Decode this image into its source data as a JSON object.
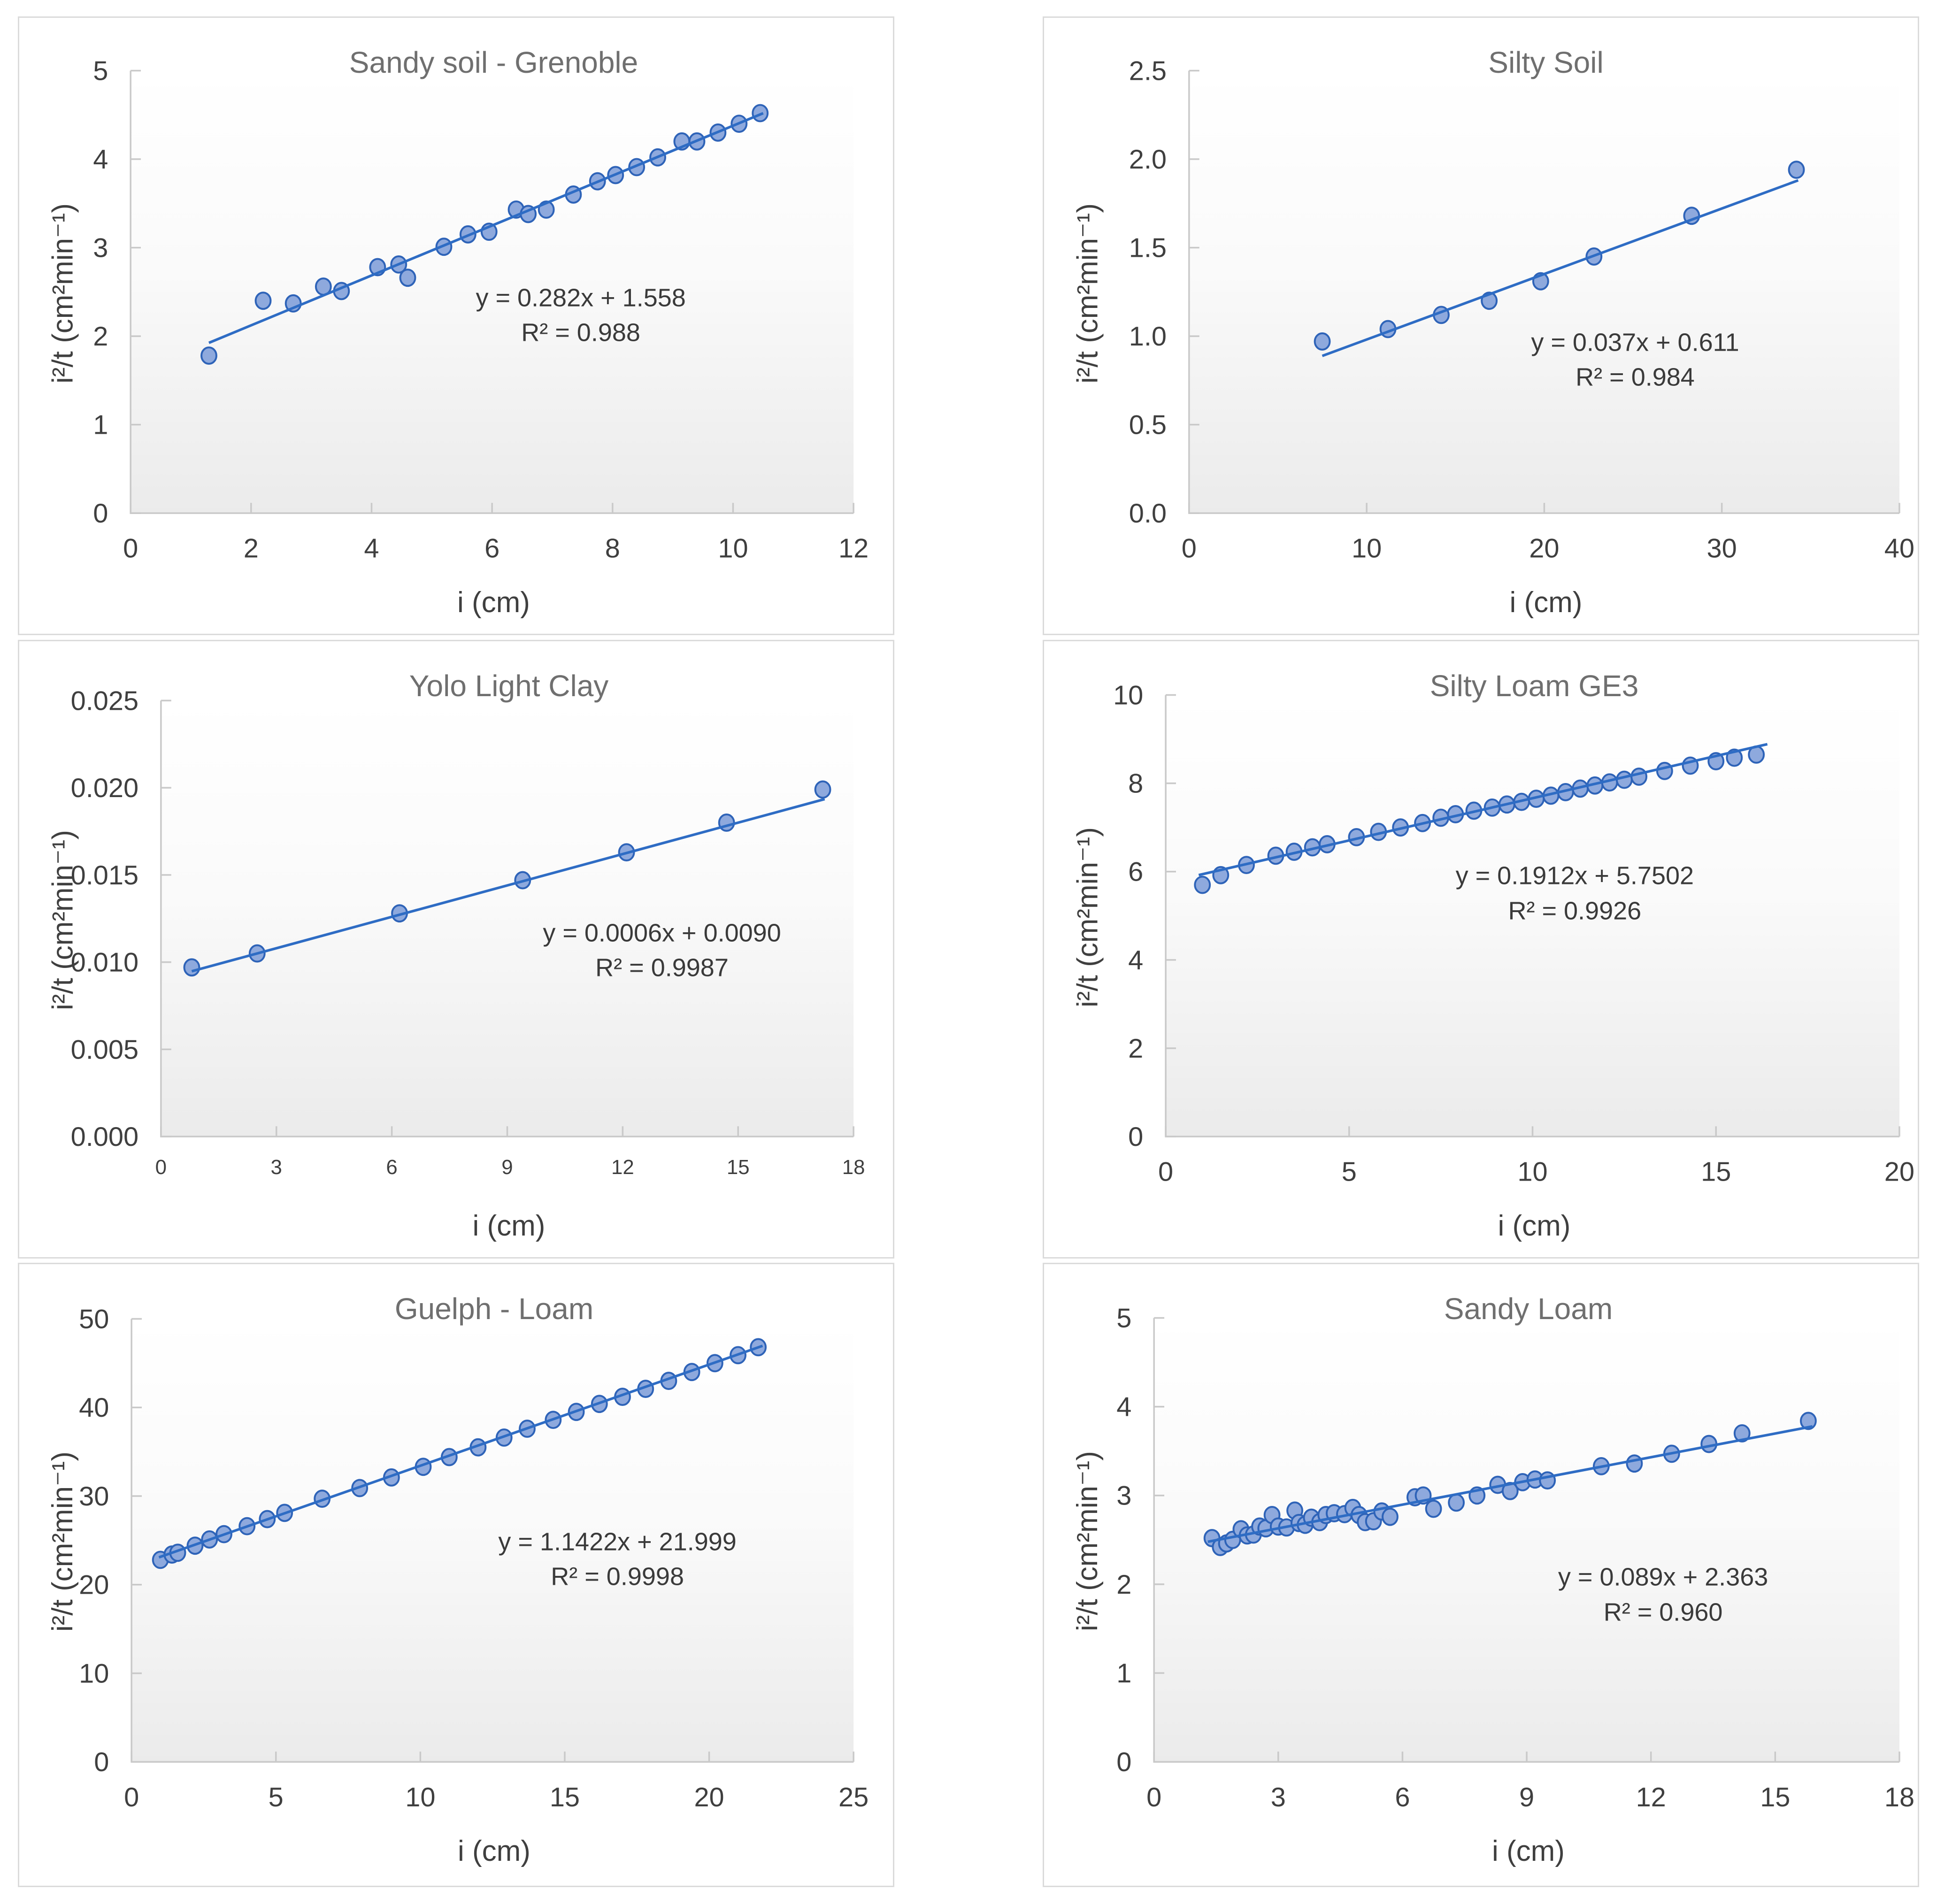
{
  "page": {
    "background": "#ffffff"
  },
  "style": {
    "trendline_color": "#2E6CC4",
    "marker_fill": "#8EA9DD",
    "marker_stroke": "#2E63B8",
    "axis_color": "#C9C9C9",
    "title_color": "#6F6F6F",
    "text_color": "#3F3F3F",
    "panel_border": "#DBDBDB",
    "plot_bg_top": "#FFFFFF",
    "plot_bg_bottom": "#EBEBEB"
  },
  "chart_data": [
    {
      "type": "scatter",
      "title": "Sandy soil - Grenoble",
      "xlabel": "i (cm)",
      "ylabel": "i²/t (cm²min⁻¹)",
      "equation": "y = 0.282x + 1.558",
      "r_squared": "R² = 0.988",
      "x_range": [
        0,
        12
      ],
      "y_range": [
        0,
        5
      ],
      "x_ticks": [
        "0",
        "2",
        "4",
        "6",
        "8",
        "10",
        "12"
      ],
      "y_ticks": [
        "0",
        "1",
        "2",
        "3",
        "4",
        "5"
      ],
      "slope": 0.282,
      "intercept": 1.558,
      "trend_x": [
        1.3,
        10.5
      ],
      "eq_pos": {
        "fx": 0.62,
        "fy": 0.55
      },
      "grid": false,
      "points": [
        [
          1.3,
          1.78
        ],
        [
          2.2,
          2.4
        ],
        [
          2.7,
          2.37
        ],
        [
          3.2,
          2.56
        ],
        [
          3.5,
          2.51
        ],
        [
          4.1,
          2.78
        ],
        [
          4.45,
          2.81
        ],
        [
          4.6,
          2.66
        ],
        [
          5.2,
          3.01
        ],
        [
          5.6,
          3.15
        ],
        [
          5.95,
          3.18
        ],
        [
          6.4,
          3.43
        ],
        [
          6.6,
          3.38
        ],
        [
          6.9,
          3.43
        ],
        [
          7.35,
          3.6
        ],
        [
          7.75,
          3.75
        ],
        [
          8.05,
          3.82
        ],
        [
          8.4,
          3.91
        ],
        [
          8.75,
          4.02
        ],
        [
          9.15,
          4.2
        ],
        [
          9.4,
          4.2
        ],
        [
          9.75,
          4.3
        ],
        [
          10.1,
          4.4
        ],
        [
          10.45,
          4.52
        ]
      ]
    },
    {
      "type": "scatter",
      "title": "Silty Soil",
      "xlabel": "i (cm)",
      "ylabel": "i²/t (cm²min⁻¹)",
      "equation": "y = 0.037x + 0.611",
      "r_squared": "R² = 0.984",
      "x_range": [
        0,
        40
      ],
      "y_range": [
        0,
        2.5
      ],
      "x_ticks": [
        "0",
        "10",
        "20",
        "30",
        "40"
      ],
      "y_ticks": [
        "0.0",
        "0.5",
        "1.0",
        "1.5",
        "2.0",
        "2.5"
      ],
      "slope": 0.037,
      "intercept": 0.611,
      "trend_x": [
        7.5,
        34.3
      ],
      "eq_pos": {
        "fx": 0.625,
        "fy": 0.65
      },
      "grid": false,
      "points": [
        [
          7.5,
          0.97
        ],
        [
          11.2,
          1.04
        ],
        [
          14.2,
          1.12
        ],
        [
          16.9,
          1.2
        ],
        [
          19.8,
          1.31
        ],
        [
          22.8,
          1.45
        ],
        [
          28.3,
          1.68
        ],
        [
          34.2,
          1.94
        ]
      ]
    },
    {
      "type": "scatter",
      "title": "Yolo Light Clay",
      "xlabel": "i (cm)",
      "ylabel": "i²/t (cm²min⁻¹)",
      "equation": "y = 0.0006x + 0.0090",
      "r_squared": "R² = 0.9987",
      "x_range": [
        0,
        18
      ],
      "y_range": [
        0,
        0.025
      ],
      "x_ticks": [
        "0",
        "3",
        "6",
        "9",
        "12",
        "15",
        "18"
      ],
      "y_ticks": [
        "0.000",
        "0.005",
        "0.010",
        "0.015",
        "0.020",
        "0.025"
      ],
      "slope": 0.0006,
      "intercept": 0.009,
      "trend_x": [
        0.8,
        17.25
      ],
      "eq_pos": {
        "fx": 0.72,
        "fy": 0.57
      },
      "grid": false,
      "points": [
        [
          0.8,
          0.0097
        ],
        [
          2.5,
          0.0105
        ],
        [
          6.2,
          0.0128
        ],
        [
          9.4,
          0.0147
        ],
        [
          12.1,
          0.0163
        ],
        [
          14.7,
          0.018
        ],
        [
          17.2,
          0.0199
        ]
      ]
    },
    {
      "type": "scatter",
      "title": "Silty Loam GE3",
      "xlabel": "i (cm)",
      "ylabel": "i²/t (cm²min⁻¹)",
      "equation": "y = 0.1912x + 5.7502",
      "r_squared": "R² = 0.9926",
      "x_range": [
        0,
        20
      ],
      "y_range": [
        0,
        10
      ],
      "x_ticks": [
        "0",
        "5",
        "10",
        "15",
        "20"
      ],
      "y_ticks": [
        "0",
        "2",
        "4",
        "6",
        "8",
        "10"
      ],
      "slope": 0.1912,
      "intercept": 5.7502,
      "trend_x": [
        0.9,
        16.4
      ],
      "eq_pos": {
        "fx": 0.555,
        "fy": 0.447
      },
      "grid": false,
      "points": [
        [
          1.0,
          5.7
        ],
        [
          1.5,
          5.92
        ],
        [
          2.2,
          6.15
        ],
        [
          3.0,
          6.36
        ],
        [
          3.5,
          6.45
        ],
        [
          4.0,
          6.55
        ],
        [
          4.4,
          6.62
        ],
        [
          5.2,
          6.78
        ],
        [
          5.8,
          6.9
        ],
        [
          6.4,
          7.0
        ],
        [
          7.0,
          7.1
        ],
        [
          7.5,
          7.22
        ],
        [
          7.9,
          7.3
        ],
        [
          8.4,
          7.38
        ],
        [
          8.9,
          7.45
        ],
        [
          9.3,
          7.52
        ],
        [
          9.7,
          7.58
        ],
        [
          10.1,
          7.65
        ],
        [
          10.5,
          7.72
        ],
        [
          10.9,
          7.8
        ],
        [
          11.3,
          7.88
        ],
        [
          11.7,
          7.95
        ],
        [
          12.1,
          8.02
        ],
        [
          12.5,
          8.08
        ],
        [
          12.9,
          8.15
        ],
        [
          13.6,
          8.28
        ],
        [
          14.3,
          8.4
        ],
        [
          15.0,
          8.5
        ],
        [
          15.5,
          8.58
        ],
        [
          16.1,
          8.65
        ]
      ]
    },
    {
      "type": "scatter",
      "title": "Guelph - Loam",
      "xlabel": "i (cm)",
      "ylabel": "i²/t (cm²min⁻¹)",
      "equation": "y = 1.1422x + 21.999",
      "r_squared": "R² = 0.9998",
      "x_range": [
        0,
        25
      ],
      "y_range": [
        0,
        50
      ],
      "x_ticks": [
        "0",
        "5",
        "10",
        "15",
        "20",
        "25"
      ],
      "y_ticks": [
        "0",
        "10",
        "20",
        "30",
        "40",
        "50"
      ],
      "slope": 1.1422,
      "intercept": 21.999,
      "trend_x": [
        0.95,
        21.85
      ],
      "eq_pos": {
        "fx": 0.67,
        "fy": 0.54
      },
      "grid": false,
      "points": [
        [
          1.0,
          22.8
        ],
        [
          1.4,
          23.4
        ],
        [
          1.6,
          23.6
        ],
        [
          2.2,
          24.4
        ],
        [
          2.7,
          25.1
        ],
        [
          3.2,
          25.7
        ],
        [
          4.0,
          26.6
        ],
        [
          4.7,
          27.4
        ],
        [
          5.3,
          28.1
        ],
        [
          6.6,
          29.7
        ],
        [
          7.9,
          30.9
        ],
        [
          9.0,
          32.1
        ],
        [
          10.1,
          33.3
        ],
        [
          11.0,
          34.4
        ],
        [
          12.0,
          35.5
        ],
        [
          12.9,
          36.6
        ],
        [
          13.7,
          37.6
        ],
        [
          14.6,
          38.6
        ],
        [
          15.4,
          39.5
        ],
        [
          16.2,
          40.4
        ],
        [
          17.0,
          41.2
        ],
        [
          17.8,
          42.1
        ],
        [
          18.6,
          43.0
        ],
        [
          19.4,
          44.0
        ],
        [
          20.2,
          45.0
        ],
        [
          21.0,
          45.9
        ],
        [
          21.7,
          46.8
        ]
      ]
    },
    {
      "type": "scatter",
      "title": "Sandy Loam",
      "xlabel": "i (cm)",
      "ylabel": "i²/t (cm²min⁻¹)",
      "equation": "y = 0.089x + 2.363",
      "r_squared": "R² = 0.960",
      "x_range": [
        0,
        18
      ],
      "y_range": [
        0,
        5
      ],
      "x_ticks": [
        "0",
        "3",
        "6",
        "9",
        "12",
        "15",
        "18"
      ],
      "y_ticks": [
        "0",
        "1",
        "2",
        "3",
        "4",
        "5"
      ],
      "slope": 0.089,
      "intercept": 2.363,
      "trend_x": [
        1.3,
        15.9
      ],
      "eq_pos": {
        "fx": 0.68,
        "fy": 0.62
      },
      "grid": false,
      "points": [
        [
          1.4,
          2.52
        ],
        [
          1.6,
          2.42
        ],
        [
          1.75,
          2.46
        ],
        [
          1.9,
          2.5
        ],
        [
          2.1,
          2.62
        ],
        [
          2.25,
          2.55
        ],
        [
          2.4,
          2.56
        ],
        [
          2.55,
          2.65
        ],
        [
          2.7,
          2.63
        ],
        [
          2.85,
          2.78
        ],
        [
          3.0,
          2.65
        ],
        [
          3.2,
          2.64
        ],
        [
          3.4,
          2.83
        ],
        [
          3.5,
          2.69
        ],
        [
          3.65,
          2.67
        ],
        [
          3.8,
          2.75
        ],
        [
          4.0,
          2.7
        ],
        [
          4.15,
          2.78
        ],
        [
          4.35,
          2.8
        ],
        [
          4.6,
          2.79
        ],
        [
          4.8,
          2.86
        ],
        [
          4.95,
          2.78
        ],
        [
          5.1,
          2.7
        ],
        [
          5.3,
          2.71
        ],
        [
          5.5,
          2.82
        ],
        [
          5.7,
          2.76
        ],
        [
          6.3,
          2.98
        ],
        [
          6.5,
          3.0
        ],
        [
          6.75,
          2.85
        ],
        [
          7.3,
          2.92
        ],
        [
          7.8,
          3.0
        ],
        [
          8.3,
          3.12
        ],
        [
          8.6,
          3.05
        ],
        [
          8.9,
          3.15
        ],
        [
          9.2,
          3.18
        ],
        [
          9.5,
          3.17
        ],
        [
          10.8,
          3.33
        ],
        [
          11.6,
          3.36
        ],
        [
          12.5,
          3.47
        ],
        [
          13.4,
          3.58
        ],
        [
          14.2,
          3.7
        ],
        [
          15.8,
          3.84
        ]
      ]
    }
  ]
}
